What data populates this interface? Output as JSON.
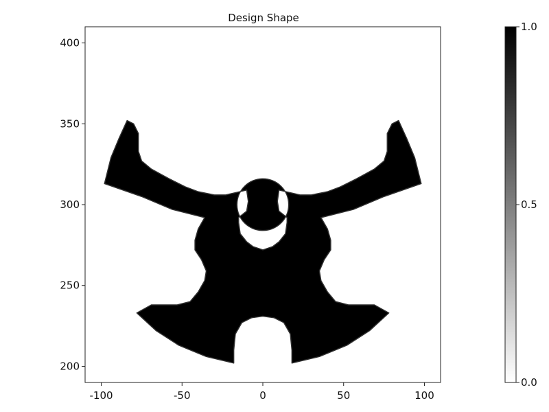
{
  "chart_data": {
    "type": "heatmap",
    "title": "Design Shape",
    "xlabel": "",
    "ylabel": "",
    "xlim": [
      -110,
      110
    ],
    "ylim": [
      190,
      410
    ],
    "xticks": [
      -100,
      -50,
      0,
      50,
      100
    ],
    "yticks": [
      200,
      250,
      300,
      350,
      400
    ],
    "colorbar": {
      "min": 0.0,
      "max": 1.0,
      "ticks": [
        0.0,
        0.5,
        1.0
      ],
      "tick_labels": [
        "0.0",
        "0.5",
        "1.0"
      ],
      "colormap": "grayscale",
      "low_color": "#ffffff",
      "high_color": "#000000"
    },
    "grid": false,
    "legend": "none",
    "shape": {
      "description_value": 1.0,
      "background_value": 0.0,
      "outline": [
        [
          -84,
          352
        ],
        [
          -80,
          350
        ],
        [
          -77,
          344
        ],
        [
          -77,
          333
        ],
        [
          -75,
          327
        ],
        [
          -69,
          322
        ],
        [
          -58,
          316
        ],
        [
          -48,
          311
        ],
        [
          -40,
          308
        ],
        [
          -30,
          306
        ],
        [
          -23,
          306
        ],
        [
          -10,
          309
        ],
        [
          -9,
          302
        ],
        [
          -10,
          296
        ],
        [
          -15,
          292
        ],
        [
          -15,
          289
        ],
        [
          -14,
          282
        ],
        [
          -10,
          277
        ],
        [
          -6,
          274
        ],
        [
          0,
          272
        ],
        [
          6,
          274
        ],
        [
          10,
          277
        ],
        [
          14,
          282
        ],
        [
          15,
          289
        ],
        [
          15,
          292
        ],
        [
          10,
          296
        ],
        [
          9,
          302
        ],
        [
          10,
          309
        ],
        [
          23,
          306
        ],
        [
          30,
          306
        ],
        [
          40,
          308
        ],
        [
          48,
          311
        ],
        [
          58,
          316
        ],
        [
          69,
          322
        ],
        [
          75,
          327
        ],
        [
          77,
          333
        ],
        [
          77,
          344
        ],
        [
          80,
          350
        ],
        [
          84,
          352
        ],
        [
          89,
          341
        ],
        [
          94,
          329
        ],
        [
          98,
          313
        ],
        [
          75,
          305
        ],
        [
          56,
          297
        ],
        [
          40,
          293
        ],
        [
          36,
          292
        ],
        [
          40,
          285
        ],
        [
          42,
          278
        ],
        [
          42,
          272
        ],
        [
          38,
          266
        ],
        [
          35,
          259
        ],
        [
          36,
          253
        ],
        [
          40,
          246
        ],
        [
          45,
          240
        ],
        [
          53,
          238
        ],
        [
          63,
          238
        ],
        [
          69,
          238
        ],
        [
          78,
          233
        ],
        [
          66,
          222
        ],
        [
          52,
          213
        ],
        [
          35,
          206
        ],
        [
          18,
          202
        ],
        [
          18,
          210
        ],
        [
          17,
          220
        ],
        [
          13,
          227
        ],
        [
          7,
          230
        ],
        [
          0,
          231
        ],
        [
          -7,
          230
        ],
        [
          -13,
          227
        ],
        [
          -17,
          220
        ],
        [
          -18,
          210
        ],
        [
          -18,
          202
        ],
        [
          -35,
          206
        ],
        [
          -52,
          213
        ],
        [
          -66,
          222
        ],
        [
          -78,
          233
        ],
        [
          -69,
          238
        ],
        [
          -63,
          238
        ],
        [
          -53,
          238
        ],
        [
          -45,
          240
        ],
        [
          -40,
          246
        ],
        [
          -36,
          253
        ],
        [
          -35,
          259
        ],
        [
          -38,
          266
        ],
        [
          -42,
          272
        ],
        [
          -42,
          278
        ],
        [
          -40,
          285
        ],
        [
          -36,
          292
        ],
        [
          -40,
          293
        ],
        [
          -56,
          297
        ],
        [
          -75,
          305
        ],
        [
          -98,
          313
        ],
        [
          -94,
          329
        ],
        [
          -89,
          341
        ]
      ],
      "hole_center": [
        0,
        300
      ],
      "hole_radius": 16
    }
  }
}
